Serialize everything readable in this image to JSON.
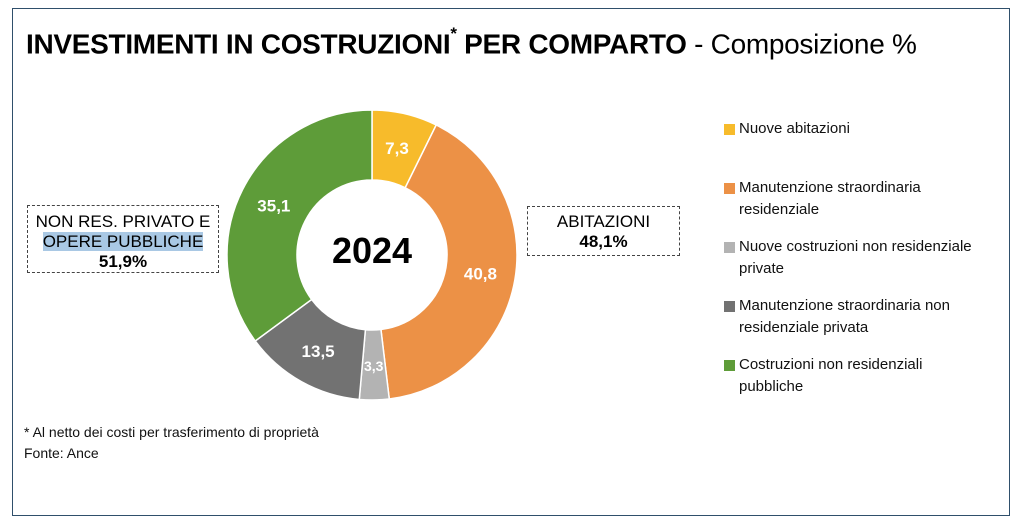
{
  "header": {
    "title_bold": "INVESTIMENTI IN COSTRUZIONI",
    "title_star": "*",
    "title_bold2": " PER COMPARTO",
    "title_rest": " - Composizione %"
  },
  "chart_data": {
    "type": "pie",
    "style": "donut",
    "center_label": "2024",
    "labels": [
      "Nuove abitazioni",
      "Manutenzione straordinaria residenziale",
      "Nuove costruzioni non residenziale private",
      "Manutenzione straordinaria non residenziale privata",
      "Costruzioni non residenziali pubbliche"
    ],
    "values": [
      7.3,
      40.8,
      3.3,
      13.5,
      35.1
    ],
    "value_labels": [
      "7,3",
      "40,8",
      "3,3",
      "13,5",
      "35,1"
    ],
    "colors": [
      "#f7bb2b",
      "#ec9146",
      "#b3b3b3",
      "#727272",
      "#5e9c39"
    ],
    "legend_position": "right"
  },
  "groups": {
    "left": {
      "line1": "NON RES. PRIVATO E",
      "line2": "OPERE PUBBLICHE",
      "pct": "51,9%"
    },
    "right": {
      "line1": "ABITAZIONI",
      "pct": "48,1%"
    }
  },
  "legend": [
    {
      "line1": "Nuove abitazioni",
      "line2": ""
    },
    {
      "line1": "Manutenzione straordinaria",
      "line2": "residenziale"
    },
    {
      "line1": "Nuove costruzioni non residenziale",
      "line2": "private"
    },
    {
      "line1": "Manutenzione straordinaria non",
      "line2": "residenziale privata"
    },
    {
      "line1": "Costruzioni non residenziali",
      "line2": "pubbliche"
    }
  ],
  "footnote": {
    "note": "* Al netto dei costi per trasferimento di proprietà",
    "source": "Fonte: Ance"
  }
}
